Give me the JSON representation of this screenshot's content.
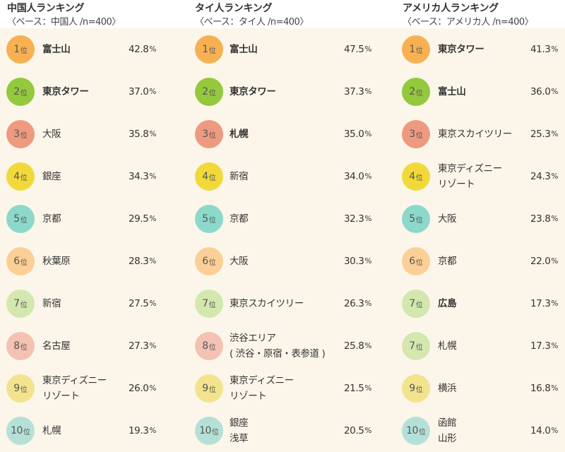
{
  "chart_data": [
    {
      "type": "table",
      "title": "中国人ランキング",
      "subtitle": "〈ベース：中国人 /n=400〉",
      "rows": [
        {
          "rank": "1",
          "rank_suffix": "位",
          "name": "富士山",
          "bold": true,
          "value": 42.8,
          "value_text": "42.8",
          "unit": "%",
          "badge_color": "#f7b152"
        },
        {
          "rank": "2",
          "rank_suffix": "位",
          "name": "東京タワー",
          "bold": true,
          "value": 37.0,
          "value_text": "37.0",
          "unit": "%",
          "badge_color": "#94c83d"
        },
        {
          "rank": "3",
          "rank_suffix": "位",
          "name": "大阪",
          "bold": false,
          "value": 35.8,
          "value_text": "35.8",
          "unit": "%",
          "badge_color": "#ee9a80"
        },
        {
          "rank": "4",
          "rank_suffix": "位",
          "name": "銀座",
          "bold": false,
          "value": 34.3,
          "value_text": "34.3",
          "unit": "%",
          "badge_color": "#f2d93a"
        },
        {
          "rank": "5",
          "rank_suffix": "位",
          "name": "京都",
          "bold": false,
          "value": 29.5,
          "value_text": "29.5",
          "unit": "%",
          "badge_color": "#8cd9cb"
        },
        {
          "rank": "6",
          "rank_suffix": "位",
          "name": "秋葉原",
          "bold": false,
          "value": 28.3,
          "value_text": "28.3",
          "unit": "%",
          "badge_color": "#fbcf95"
        },
        {
          "rank": "7",
          "rank_suffix": "位",
          "name": "新宿",
          "bold": false,
          "value": 27.5,
          "value_text": "27.5",
          "unit": "%",
          "badge_color": "#d3e7ae"
        },
        {
          "rank": "8",
          "rank_suffix": "位",
          "name": "名古屋",
          "bold": false,
          "value": 27.3,
          "value_text": "27.3",
          "unit": "%",
          "badge_color": "#f3c2b2"
        },
        {
          "rank": "9",
          "rank_suffix": "位",
          "name": "東京ディズニー\nリゾート",
          "bold": false,
          "value": 26.0,
          "value_text": "26.0",
          "unit": "%",
          "badge_color": "#f3e38c"
        },
        {
          "rank": "10",
          "rank_suffix": "位",
          "name": "札幌",
          "bold": false,
          "value": 19.3,
          "value_text": "19.3",
          "unit": "%",
          "badge_color": "#b5e0d7"
        }
      ]
    },
    {
      "type": "table",
      "title": "タイ人ランキング",
      "subtitle": "〈ベース：タイ人 /n=400〉",
      "rows": [
        {
          "rank": "1",
          "rank_suffix": "位",
          "name": "富士山",
          "bold": true,
          "value": 47.5,
          "value_text": "47.5",
          "unit": "%",
          "badge_color": "#f7b152"
        },
        {
          "rank": "2",
          "rank_suffix": "位",
          "name": "東京タワー",
          "bold": true,
          "value": 37.3,
          "value_text": "37.3",
          "unit": "%",
          "badge_color": "#94c83d"
        },
        {
          "rank": "3",
          "rank_suffix": "位",
          "name": "札幌",
          "bold": true,
          "value": 35.0,
          "value_text": "35.0",
          "unit": "%",
          "badge_color": "#ee9a80"
        },
        {
          "rank": "4",
          "rank_suffix": "位",
          "name": "新宿",
          "bold": false,
          "value": 34.0,
          "value_text": "34.0",
          "unit": "%",
          "badge_color": "#f2d93a"
        },
        {
          "rank": "5",
          "rank_suffix": "位",
          "name": "京都",
          "bold": false,
          "value": 32.3,
          "value_text": "32.3",
          "unit": "%",
          "badge_color": "#8cd9cb"
        },
        {
          "rank": "6",
          "rank_suffix": "位",
          "name": "大阪",
          "bold": false,
          "value": 30.3,
          "value_text": "30.3",
          "unit": "%",
          "badge_color": "#fbcf95"
        },
        {
          "rank": "7",
          "rank_suffix": "位",
          "name": "東京スカイツリー",
          "bold": false,
          "value": 26.3,
          "value_text": "26.3",
          "unit": "%",
          "badge_color": "#d3e7ae"
        },
        {
          "rank": "8",
          "rank_suffix": "位",
          "name": "渋谷エリア\n( 渋谷・原宿・表参道 )",
          "bold": false,
          "value": 25.8,
          "value_text": "25.8",
          "unit": "%",
          "badge_color": "#f3c2b2"
        },
        {
          "rank": "9",
          "rank_suffix": "位",
          "name": "東京ディズニー\nリゾート",
          "bold": false,
          "value": 21.5,
          "value_text": "21.5",
          "unit": "%",
          "badge_color": "#f3e38c"
        },
        {
          "rank": "10",
          "rank_suffix": "位",
          "name": "銀座\n浅草",
          "bold": false,
          "value": 20.5,
          "value_text": "20.5",
          "unit": "%",
          "badge_color": "#b5e0d7"
        }
      ]
    },
    {
      "type": "table",
      "title": "アメリカ人ランキング",
      "subtitle": "〈ベース：アメリカ人 /n=400〉",
      "rows": [
        {
          "rank": "1",
          "rank_suffix": "位",
          "name": "東京タワー",
          "bold": true,
          "value": 41.3,
          "value_text": "41.3",
          "unit": "%",
          "badge_color": "#f7b152"
        },
        {
          "rank": "2",
          "rank_suffix": "位",
          "name": "富士山",
          "bold": true,
          "value": 36.0,
          "value_text": "36.0",
          "unit": "%",
          "badge_color": "#94c83d"
        },
        {
          "rank": "3",
          "rank_suffix": "位",
          "name": "東京スカイツリー",
          "bold": false,
          "value": 25.3,
          "value_text": "25.3",
          "unit": "%",
          "badge_color": "#ee9a80"
        },
        {
          "rank": "4",
          "rank_suffix": "位",
          "name": "東京ディズニー\nリゾート",
          "bold": false,
          "value": 24.3,
          "value_text": "24.3",
          "unit": "%",
          "badge_color": "#f2d93a"
        },
        {
          "rank": "5",
          "rank_suffix": "位",
          "name": "大阪",
          "bold": false,
          "value": 23.8,
          "value_text": "23.8",
          "unit": "%",
          "badge_color": "#8cd9cb"
        },
        {
          "rank": "6",
          "rank_suffix": "位",
          "name": "京都",
          "bold": false,
          "value": 22.0,
          "value_text": "22.0",
          "unit": "%",
          "badge_color": "#fbcf95"
        },
        {
          "rank": "7",
          "rank_suffix": "位",
          "name": "広島",
          "bold": true,
          "value": 17.3,
          "value_text": "17.3",
          "unit": "%",
          "badge_color": "#d3e7ae"
        },
        {
          "rank": "7",
          "rank_suffix": "位",
          "name": "札幌",
          "bold": false,
          "value": 17.3,
          "value_text": "17.3",
          "unit": "%",
          "badge_color": "#d3e7ae"
        },
        {
          "rank": "9",
          "rank_suffix": "位",
          "name": "横浜",
          "bold": false,
          "value": 16.8,
          "value_text": "16.8",
          "unit": "%",
          "badge_color": "#f3e38c"
        },
        {
          "rank": "10",
          "rank_suffix": "位",
          "name": "函館\n山形",
          "bold": false,
          "value": 14.0,
          "value_text": "14.0",
          "unit": "%",
          "badge_color": "#b5e0d7"
        }
      ]
    }
  ]
}
